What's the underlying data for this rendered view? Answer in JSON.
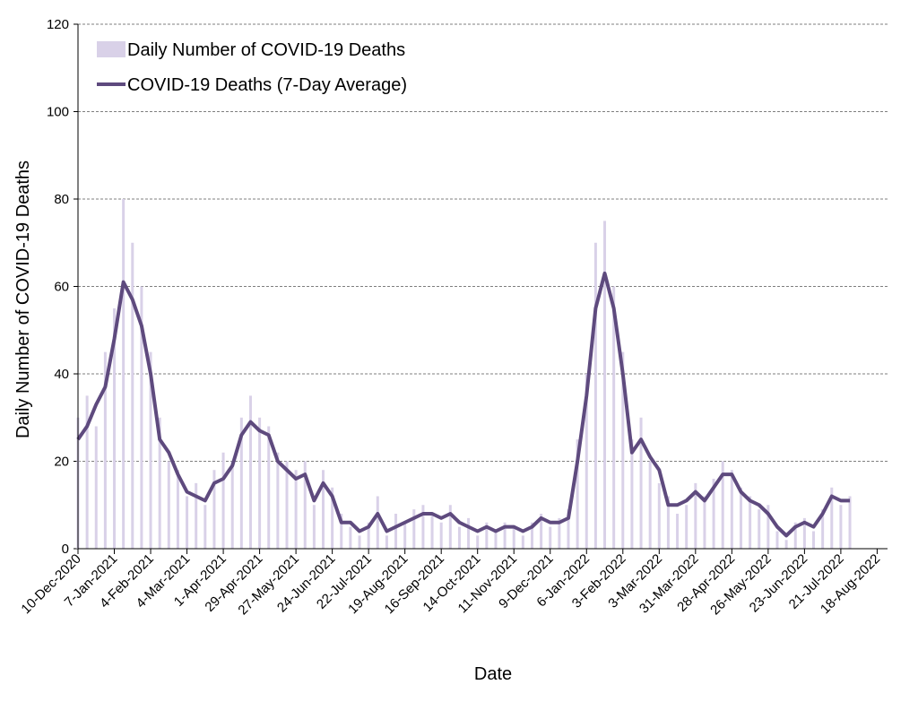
{
  "chart_data": {
    "type": "bar+line",
    "y_label": "Daily Number of COVID-19 Deaths",
    "x_label": "Date",
    "legend": "upper left",
    "grid": true,
    "ylim": [
      0,
      120
    ],
    "yticks": [
      0,
      20,
      40,
      60,
      80,
      100,
      120
    ],
    "xlim": [
      "2020-12-10",
      "2022-08-26"
    ],
    "xticks": [
      {
        "value": "2020-12-10",
        "label": "10-Dec-2020"
      },
      {
        "value": "2021-01-07",
        "label": "7-Jan-2021"
      },
      {
        "value": "2021-02-04",
        "label": "4-Feb-2021"
      },
      {
        "value": "2021-03-04",
        "label": "4-Mar-2021"
      },
      {
        "value": "2021-04-01",
        "label": "1-Apr-2021"
      },
      {
        "value": "2021-04-29",
        "label": "29-Apr-2021"
      },
      {
        "value": "2021-05-27",
        "label": "27-May-2021"
      },
      {
        "value": "2021-06-24",
        "label": "24-Jun-2021"
      },
      {
        "value": "2021-07-22",
        "label": "22-Jul-2021"
      },
      {
        "value": "2021-08-19",
        "label": "19-Aug-2021"
      },
      {
        "value": "2021-09-16",
        "label": "16-Sep-2021"
      },
      {
        "value": "2021-10-14",
        "label": "14-Oct-2021"
      },
      {
        "value": "2021-11-11",
        "label": "11-Nov-2021"
      },
      {
        "value": "2021-12-09",
        "label": "9-Dec-2021"
      },
      {
        "value": "2022-01-06",
        "label": "6-Jan-2022"
      },
      {
        "value": "2022-02-03",
        "label": "3-Feb-2022"
      },
      {
        "value": "2022-03-03",
        "label": "3-Mar-2022"
      },
      {
        "value": "2022-03-31",
        "label": "31-Mar-2022"
      },
      {
        "value": "2022-04-28",
        "label": "28-Apr-2022"
      },
      {
        "value": "2022-05-26",
        "label": "26-May-2022"
      },
      {
        "value": "2022-06-23",
        "label": "23-Jun-2022"
      },
      {
        "value": "2022-07-21",
        "label": "21-Jul-2022"
      },
      {
        "value": "2022-08-18",
        "label": "18-Aug-2022"
      }
    ],
    "x": [
      "2020-12-10",
      "2020-12-17",
      "2020-12-24",
      "2020-12-31",
      "2021-01-07",
      "2021-01-14",
      "2021-01-21",
      "2021-01-28",
      "2021-02-04",
      "2021-02-11",
      "2021-02-18",
      "2021-02-25",
      "2021-03-04",
      "2021-03-11",
      "2021-03-18",
      "2021-03-25",
      "2021-04-01",
      "2021-04-08",
      "2021-04-15",
      "2021-04-22",
      "2021-04-29",
      "2021-05-06",
      "2021-05-13",
      "2021-05-20",
      "2021-05-27",
      "2021-06-03",
      "2021-06-10",
      "2021-06-17",
      "2021-06-24",
      "2021-07-01",
      "2021-07-08",
      "2021-07-15",
      "2021-07-22",
      "2021-07-29",
      "2021-08-05",
      "2021-08-12",
      "2021-08-19",
      "2021-08-26",
      "2021-09-02",
      "2021-09-09",
      "2021-09-16",
      "2021-09-23",
      "2021-09-30",
      "2021-10-07",
      "2021-10-14",
      "2021-10-21",
      "2021-10-28",
      "2021-11-04",
      "2021-11-11",
      "2021-11-18",
      "2021-11-25",
      "2021-12-02",
      "2021-12-09",
      "2021-12-16",
      "2021-12-23",
      "2021-12-30",
      "2022-01-06",
      "2022-01-13",
      "2022-01-20",
      "2022-01-27",
      "2022-02-03",
      "2022-02-10",
      "2022-02-17",
      "2022-02-24",
      "2022-03-03",
      "2022-03-10",
      "2022-03-17",
      "2022-03-24",
      "2022-03-31",
      "2022-04-07",
      "2022-04-14",
      "2022-04-21",
      "2022-04-28",
      "2022-05-05",
      "2022-05-12",
      "2022-05-19",
      "2022-05-26",
      "2022-06-02",
      "2022-06-09",
      "2022-06-16",
      "2022-06-23",
      "2022-06-30",
      "2022-07-07",
      "2022-07-14",
      "2022-07-21",
      "2022-07-28"
    ],
    "series": [
      {
        "name": "Daily Number of COVID-19 Deaths",
        "type": "bar",
        "color": "#d9d1e8",
        "values": [
          30,
          35,
          28,
          45,
          55,
          80,
          70,
          60,
          45,
          30,
          20,
          18,
          12,
          15,
          10,
          18,
          22,
          20,
          30,
          35,
          30,
          28,
          22,
          20,
          18,
          20,
          10,
          18,
          14,
          8,
          5,
          3,
          6,
          12,
          3,
          8,
          6,
          9,
          10,
          8,
          6,
          10,
          5,
          7,
          3,
          6,
          4,
          6,
          5,
          3,
          6,
          8,
          5,
          7,
          9,
          25,
          40,
          70,
          75,
          60,
          45,
          25,
          30,
          20,
          15,
          12,
          8,
          10,
          15,
          12,
          16,
          20,
          18,
          14,
          12,
          9,
          10,
          4,
          2,
          6,
          7,
          4,
          9,
          14,
          10,
          12
        ]
      },
      {
        "name": "COVID-19 Deaths (7-Day Average)",
        "type": "line",
        "color": "#5e4a7e",
        "values": [
          25,
          28,
          33,
          37,
          48,
          61,
          57,
          51,
          40,
          25,
          22,
          17,
          13,
          12,
          11,
          15,
          16,
          19,
          26,
          29,
          27,
          26,
          20,
          18,
          16,
          17,
          11,
          15,
          12,
          6,
          6,
          4,
          5,
          8,
          4,
          5,
          6,
          7,
          8,
          8,
          7,
          8,
          6,
          5,
          4,
          5,
          4,
          5,
          5,
          4,
          5,
          7,
          6,
          6,
          7,
          20,
          35,
          55,
          63,
          55,
          40,
          22,
          25,
          21,
          18,
          10,
          10,
          11,
          13,
          11,
          14,
          17,
          17,
          13,
          11,
          10,
          8,
          5,
          3,
          5,
          6,
          5,
          8,
          12,
          11,
          11
        ]
      }
    ]
  }
}
